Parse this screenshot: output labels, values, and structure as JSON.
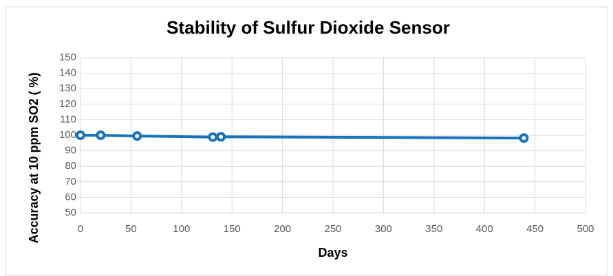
{
  "chart_data": {
    "type": "line",
    "title": "Stability of Sulfur Dioxide Sensor",
    "x_label": "Days",
    "y_label": "Accuracy at 10 ppm SO2 ( %)",
    "series": [
      {
        "name": "Accuracy",
        "color": "#1a72bb",
        "x": [
          0,
          20,
          56,
          131,
          139,
          439
        ],
        "values": [
          100,
          100,
          99.5,
          98.8,
          99,
          98.2
        ]
      }
    ],
    "xlim": [
      0,
      500
    ],
    "xticks": [
      0,
      50,
      100,
      150,
      200,
      250,
      300,
      350,
      400,
      450,
      500
    ],
    "ylim": [
      50,
      150
    ],
    "yticks": [
      50,
      60,
      70,
      80,
      90,
      100,
      110,
      120,
      130,
      140,
      150
    ],
    "grid": true
  }
}
